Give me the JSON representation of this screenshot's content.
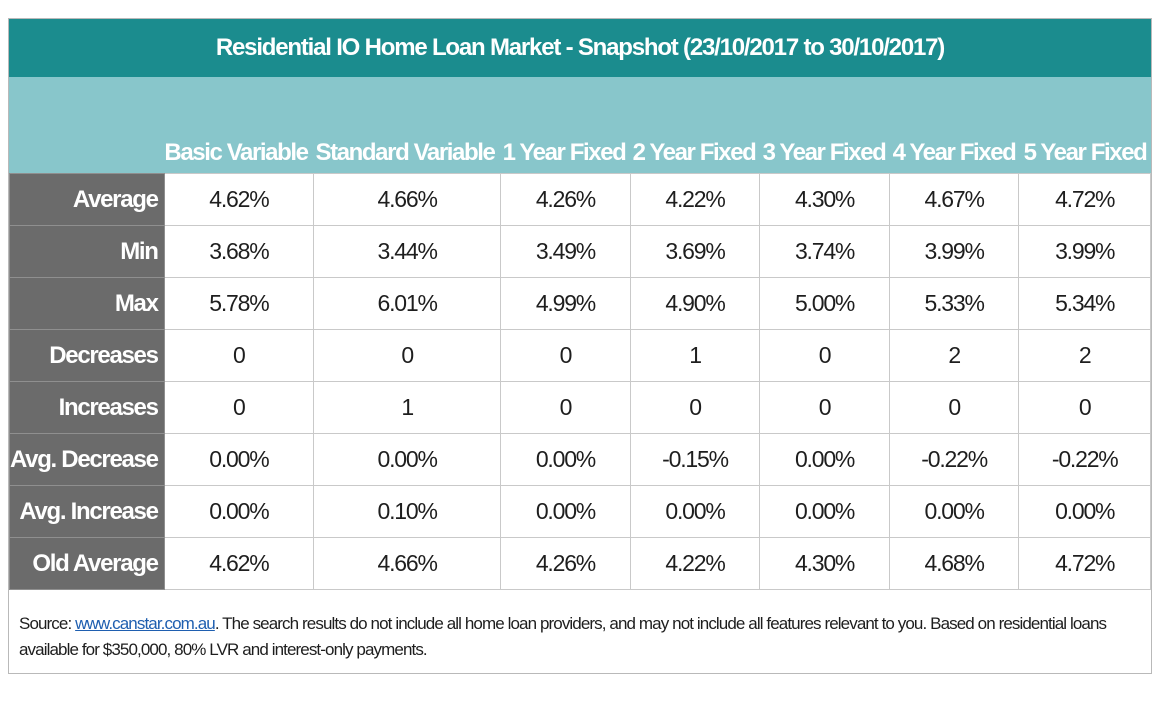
{
  "title": "Residential IO Home Loan Market - Snapshot (23/10/2017 to 30/10/2017)",
  "columns": [
    "Basic Variable",
    "Standard Variable",
    "1 Year Fixed",
    "2 Year Fixed",
    "3 Year Fixed",
    "4 Year Fixed",
    "5 Year Fixed"
  ],
  "rows": [
    {
      "label": "Average",
      "values": [
        "4.62%",
        "4.66%",
        "4.26%",
        "4.22%",
        "4.30%",
        "4.67%",
        "4.72%"
      ]
    },
    {
      "label": "Min",
      "values": [
        "3.68%",
        "3.44%",
        "3.49%",
        "3.69%",
        "3.74%",
        "3.99%",
        "3.99%"
      ]
    },
    {
      "label": "Max",
      "values": [
        "5.78%",
        "6.01%",
        "4.99%",
        "4.90%",
        "5.00%",
        "5.33%",
        "5.34%"
      ]
    },
    {
      "label": "Decreases",
      "values": [
        "0",
        "0",
        "0",
        "1",
        "0",
        "2",
        "2"
      ]
    },
    {
      "label": "Increases",
      "values": [
        "0",
        "1",
        "0",
        "0",
        "0",
        "0",
        "0"
      ]
    },
    {
      "label": "Avg. Decrease",
      "values": [
        "0.00%",
        "0.00%",
        "0.00%",
        "-0.15%",
        "0.00%",
        "-0.22%",
        "-0.22%"
      ]
    },
    {
      "label": "Avg. Increase",
      "values": [
        "0.00%",
        "0.10%",
        "0.00%",
        "0.00%",
        "0.00%",
        "0.00%",
        "0.00%"
      ]
    },
    {
      "label": "Old Average",
      "values": [
        "4.62%",
        "4.66%",
        "4.26%",
        "4.22%",
        "4.30%",
        "4.68%",
        "4.72%"
      ]
    }
  ],
  "footer": {
    "prefix": "Source: ",
    "link_text": "www.canstar.com.au",
    "text": ". The search results do not include all home loan providers, and may not include all features relevant to you. Based on residential loans available for $350,000, 80% LVR and interest-only payments."
  },
  "colors": {
    "title_bar": "#1b8c8e",
    "header_band": "#88c6cb",
    "row_label_bg": "#6b6b6b",
    "link": "#1f5fb0"
  }
}
